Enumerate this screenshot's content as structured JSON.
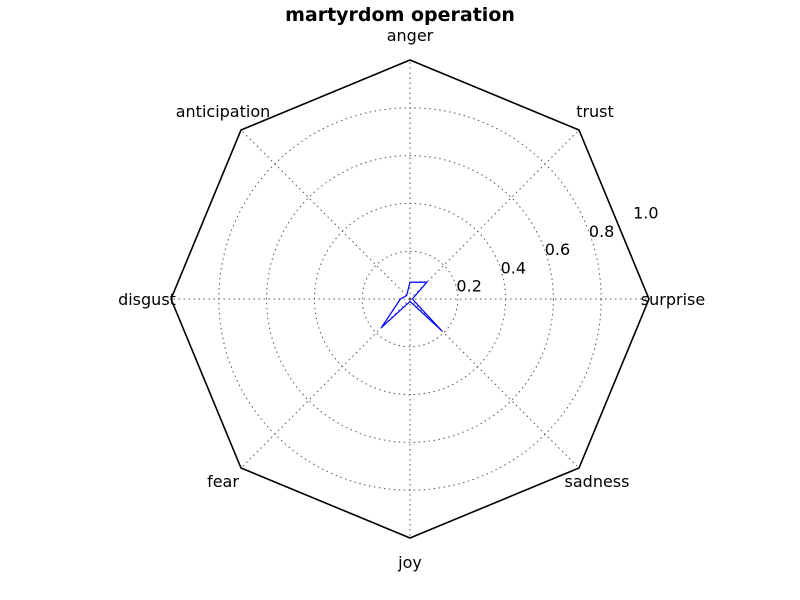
{
  "chart_data": {
    "type": "radar",
    "title": "martyrdom operation",
    "categories": [
      "anger",
      "trust",
      "surprise",
      "sadness",
      "joy",
      "fear",
      "disgust",
      "anticipation"
    ],
    "rlim": [
      0,
      1.0
    ],
    "radial_ticks": [
      0.2,
      0.4,
      0.6,
      0.8,
      1.0
    ],
    "radial_tick_labels": [
      "0.2",
      "0.4",
      "0.6",
      "0.8",
      "1.0"
    ],
    "grid": true,
    "series": [
      {
        "values": [
          0.07,
          0.1,
          0.01,
          0.19,
          0.01,
          0.17,
          0.04,
          0.02
        ],
        "color": "#0000ff"
      }
    ]
  }
}
